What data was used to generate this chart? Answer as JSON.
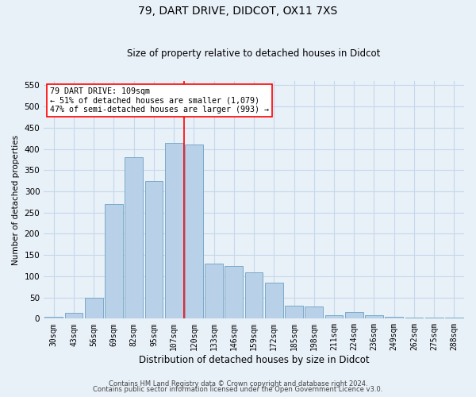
{
  "title1": "79, DART DRIVE, DIDCOT, OX11 7XS",
  "title2": "Size of property relative to detached houses in Didcot",
  "xlabel": "Distribution of detached houses by size in Didcot",
  "ylabel": "Number of detached properties",
  "categories": [
    "30sqm",
    "43sqm",
    "56sqm",
    "69sqm",
    "82sqm",
    "95sqm",
    "107sqm",
    "120sqm",
    "133sqm",
    "146sqm",
    "159sqm",
    "172sqm",
    "185sqm",
    "198sqm",
    "211sqm",
    "224sqm",
    "236sqm",
    "249sqm",
    "262sqm",
    "275sqm",
    "288sqm"
  ],
  "values": [
    4,
    14,
    50,
    270,
    380,
    325,
    415,
    410,
    130,
    125,
    110,
    85,
    30,
    28,
    8,
    15,
    8,
    5,
    2,
    2,
    2
  ],
  "bar_color": "#b8d0e8",
  "bar_edge_color": "#7aaac8",
  "grid_color": "#c5d8ea",
  "bg_color": "#e8f0f8",
  "vline_color": "red",
  "vline_pos": 6.5,
  "annotation_text": "79 DART DRIVE: 109sqm\n← 51% of detached houses are smaller (1,079)\n47% of semi-detached houses are larger (993) →",
  "footer1": "Contains HM Land Registry data © Crown copyright and database right 2024.",
  "footer2": "Contains public sector information licensed under the Open Government Licence v3.0.",
  "ylim": [
    0,
    560
  ],
  "yticks": [
    0,
    50,
    100,
    150,
    200,
    250,
    300,
    350,
    400,
    450,
    500,
    550
  ]
}
